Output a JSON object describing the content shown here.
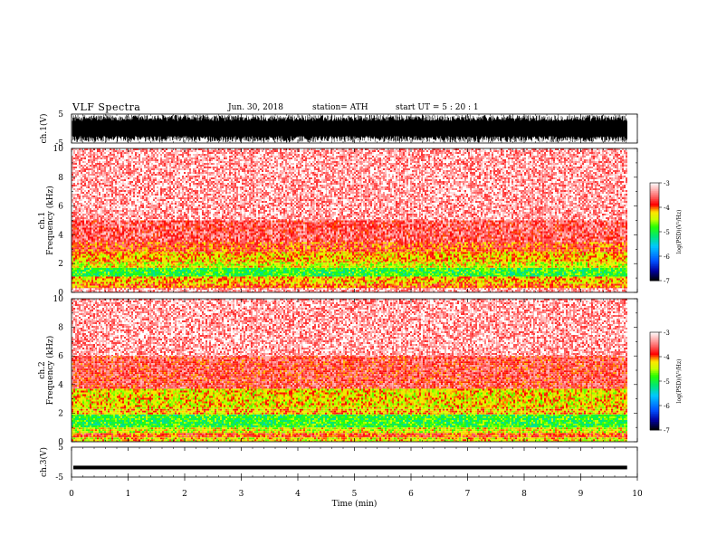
{
  "header": {
    "title": "VLF  Spectra",
    "date": "Jun. 30, 2018",
    "station": "station= ATH",
    "start": "start  UT  =    5  : 20 : 1"
  },
  "chart_data": {
    "type": "heatmap",
    "xlabel": "Time  (min)",
    "xlim": [
      0,
      10
    ],
    "xticks": [
      "0",
      "1",
      "2",
      "3",
      "4",
      "5",
      "6",
      "7",
      "8",
      "9",
      "10"
    ],
    "data_end_min": 9.82,
    "waveform_ch1": {
      "ylabel": "ch.1(V)",
      "ylim": [
        -5,
        5
      ],
      "yticks": [
        "5",
        "-5"
      ],
      "amplitude_fraction": 0.95
    },
    "spectrogram_ch1": {
      "ylabel_channel": "ch.1",
      "ylabel": "Frequency  (kHz)",
      "ylim": [
        0,
        10
      ],
      "yticks": [
        "0",
        "2",
        "4",
        "6",
        "8",
        "10"
      ],
      "bands_khz_log_psd": [
        {
          "f0": 0.0,
          "f1": 0.3,
          "value": -3.3
        },
        {
          "f0": 0.3,
          "f1": 0.6,
          "value": -4.0
        },
        {
          "f0": 0.6,
          "f1": 1.1,
          "value": -4.2
        },
        {
          "f0": 1.1,
          "f1": 1.7,
          "value": -4.9
        },
        {
          "f0": 1.7,
          "f1": 2.1,
          "value": -4.4
        },
        {
          "f0": 2.1,
          "f1": 2.8,
          "value": -4.2
        },
        {
          "f0": 2.8,
          "f1": 3.5,
          "value": -3.9
        },
        {
          "f0": 3.5,
          "f1": 5.0,
          "value": -3.6
        },
        {
          "f0": 5.0,
          "f1": 10.0,
          "value": -3.3
        }
      ]
    },
    "spectrogram_ch2": {
      "ylabel_channel": "ch.2",
      "ylabel": "Frequency  (kHz)",
      "ylim": [
        0,
        10
      ],
      "yticks": [
        "0",
        "2",
        "4",
        "6",
        "8",
        "10"
      ],
      "bands_khz_log_psd": [
        {
          "f0": 0.0,
          "f1": 0.3,
          "value": -4.3
        },
        {
          "f0": 0.3,
          "f1": 0.6,
          "value": -3.9
        },
        {
          "f0": 0.6,
          "f1": 1.0,
          "value": -4.4
        },
        {
          "f0": 1.0,
          "f1": 1.9,
          "value": -4.9
        },
        {
          "f0": 1.9,
          "f1": 2.3,
          "value": -4.2
        },
        {
          "f0": 2.3,
          "f1": 3.7,
          "value": -4.3
        },
        {
          "f0": 3.7,
          "f1": 6.0,
          "value": -3.7
        },
        {
          "f0": 6.0,
          "f1": 10.0,
          "value": -3.3
        }
      ]
    },
    "waveform_ch3": {
      "ylabel": "ch.3(V)",
      "ylim": [
        -5,
        5
      ],
      "yticks": [
        "5",
        "-5"
      ],
      "level": -1.8
    },
    "colorbar": {
      "label": "log(PSD)(V²/Hz)",
      "range": [
        -7,
        -3
      ],
      "ticks": [
        "-3",
        "-4",
        "-5",
        "-6",
        "-7"
      ]
    }
  }
}
